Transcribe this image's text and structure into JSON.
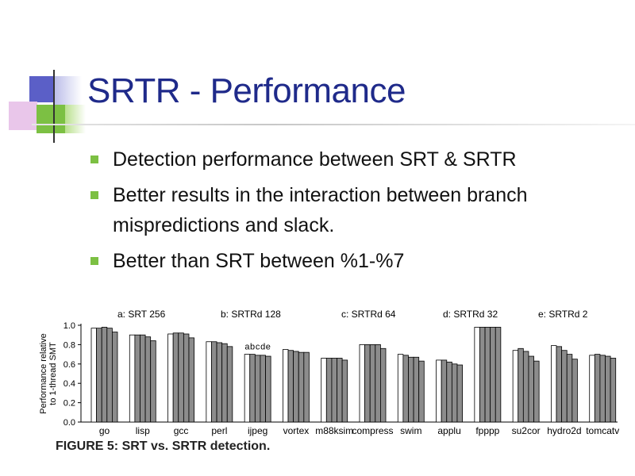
{
  "slide": {
    "title": "SRTR - Performance",
    "bullets": [
      "Detection performance between SRT & SRTR",
      "Better results in the interaction between branch mispredictions and slack.",
      "Better than SRT between %1-%7"
    ],
    "caption": "FIGURE 5: SRT vs. SRTR detection."
  },
  "colors": {
    "title": "#1f2a8a",
    "bullet": "#7cc043",
    "bar_srt": "#ffffff",
    "bar_srtr": "#8c8c8c"
  },
  "chart_data": {
    "type": "bar",
    "ylabel": "Performance relative to 1-thread SMT",
    "ylim": [
      0,
      1.0
    ],
    "yticks": [
      "1.0",
      "0.8",
      "0.6",
      "0.4",
      "0.2",
      "0.0"
    ],
    "bar_labels": [
      "a",
      "b",
      "c",
      "d",
      "e"
    ],
    "legend": [
      {
        "key": "a",
        "name": "SRT 256"
      },
      {
        "key": "b",
        "name": "SRTRd 128"
      },
      {
        "key": "c",
        "name": "SRTRd 64"
      },
      {
        "key": "d",
        "name": "SRTRd 32"
      },
      {
        "key": "e",
        "name": "SRTRd 2"
      }
    ],
    "categories": [
      "go",
      "lisp",
      "gcc",
      "perl",
      "ijpeg",
      "vortex",
      "m88ksim",
      "compress",
      "swim",
      "applu",
      "fpppp",
      "su2cor",
      "hydro2d",
      "tomcatv"
    ],
    "values": [
      [
        0.97,
        0.97,
        0.98,
        0.97,
        0.93
      ],
      [
        0.9,
        0.9,
        0.9,
        0.88,
        0.84
      ],
      [
        0.91,
        0.92,
        0.92,
        0.91,
        0.87
      ],
      [
        0.83,
        0.83,
        0.82,
        0.81,
        0.78
      ],
      [
        0.7,
        0.7,
        0.69,
        0.69,
        0.68
      ],
      [
        0.75,
        0.74,
        0.73,
        0.72,
        0.72
      ],
      [
        0.66,
        0.66,
        0.66,
        0.66,
        0.64
      ],
      [
        0.8,
        0.8,
        0.8,
        0.8,
        0.76
      ],
      [
        0.7,
        0.69,
        0.67,
        0.67,
        0.63
      ],
      [
        0.64,
        0.64,
        0.62,
        0.6,
        0.59
      ],
      [
        0.98,
        0.98,
        0.98,
        0.98,
        0.98
      ],
      [
        0.74,
        0.76,
        0.73,
        0.68,
        0.63
      ],
      [
        0.79,
        0.78,
        0.74,
        0.7,
        0.65
      ],
      [
        0.69,
        0.7,
        0.69,
        0.68,
        0.66
      ]
    ]
  }
}
